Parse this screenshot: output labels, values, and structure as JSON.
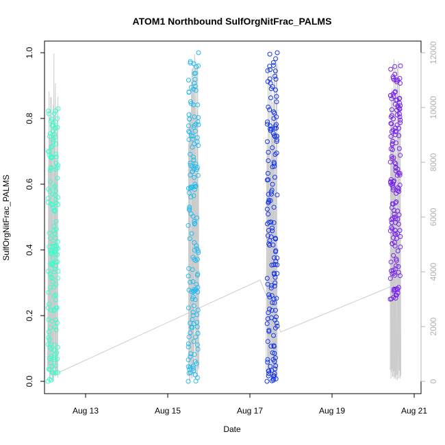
{
  "chart_data": {
    "type": "scatter",
    "title": "ATOM1 Northbound SulfOrgNitFrac_PALMS",
    "xlabel": "Date",
    "ylabel": "SulfOrgNitFrac_PALMS",
    "x_ticks": [
      "Aug 13",
      "Aug 15",
      "Aug 17",
      "Aug 19",
      "Aug 21"
    ],
    "y_ticks": [
      "0.0",
      "0.2",
      "0.4",
      "0.6",
      "0.8",
      "1.0"
    ],
    "y2_ticks": [
      "0",
      "2000",
      "4000",
      "6000",
      "8000",
      "10000",
      "12000"
    ],
    "xlim": [
      "2016-08-12 00:00",
      "2016-08-21 04:00"
    ],
    "ylim": [
      0,
      1
    ],
    "y2lim": [
      0,
      12000
    ],
    "grid": false,
    "colors": {
      "flight1": "#33ffcc",
      "flight2": "#22bbee",
      "flight3": "#1133ee",
      "flight4": "#7722ee",
      "altitude": "#cccccc",
      "frame": "#000000"
    },
    "series": [
      {
        "x": [
          "2016-08-12 02:00",
          "2016-08-12 04:00",
          "2016-08-12 06:00",
          "2016-08-12 08:00"
        ],
        "y": [
          0.0,
          0.54,
          0.45,
          0.83
        ],
        "y_range": [
          0.0,
          0.83
        ]
      },
      {
        "x": [
          "2016-08-15 12:00",
          "2016-08-15 14:00",
          "2016-08-15 16:00",
          "2016-08-15 18:00"
        ],
        "y": [
          0.0,
          0.45,
          0.6,
          1.0
        ],
        "y_range": [
          0.0,
          1.0
        ]
      },
      {
        "x": [
          "2016-08-17 10:00",
          "2016-08-17 12:00",
          "2016-08-17 14:00",
          "2016-08-17 16:00"
        ],
        "y": [
          0.0,
          0.55,
          0.8,
          1.0
        ],
        "y_range": [
          0.0,
          1.0
        ]
      },
      {
        "x": [
          "2016-08-20 10:00",
          "2016-08-20 12:00",
          "2016-08-20 14:00",
          "2016-08-20 16:00"
        ],
        "y": [
          0.25,
          0.68,
          0.78,
          0.96
        ],
        "y_range": [
          0.25,
          0.96
        ]
      }
    ],
    "altitude_path": {
      "x": [
        "2016-08-12 04:00",
        "2016-08-17 06:00",
        "2016-08-17 18:00",
        "2016-08-20 12:00"
      ],
      "y2": [
        200,
        3700,
        1800,
        3500
      ]
    }
  }
}
